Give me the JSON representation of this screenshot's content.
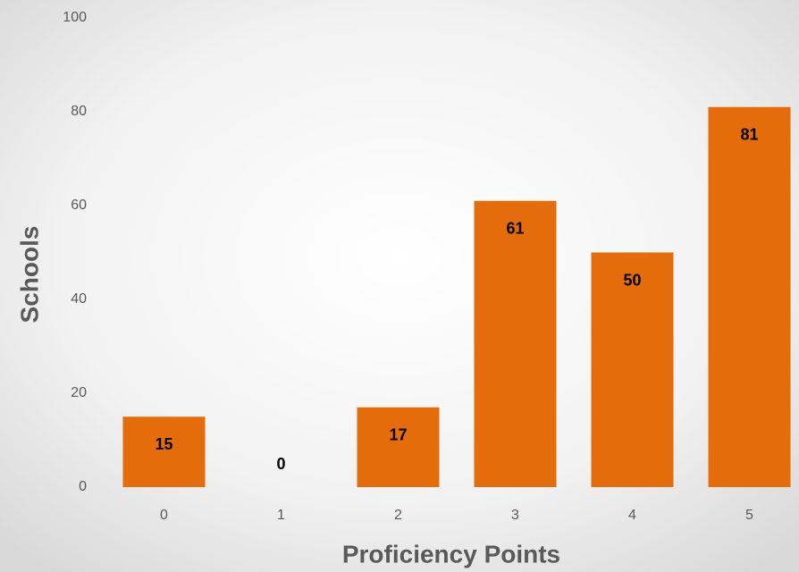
{
  "chart_data": {
    "type": "bar",
    "x_label": "Proficiency Points",
    "y_label": "Schools",
    "categories": [
      "0",
      "1",
      "2",
      "3",
      "4",
      "5"
    ],
    "values": [
      15,
      0,
      17,
      61,
      50,
      81
    ],
    "color": "#e46c0a",
    "ylim": [
      0,
      100
    ],
    "yticks": [
      0,
      20,
      40,
      60,
      80,
      100
    ],
    "grid": false,
    "data_labels": true
  }
}
